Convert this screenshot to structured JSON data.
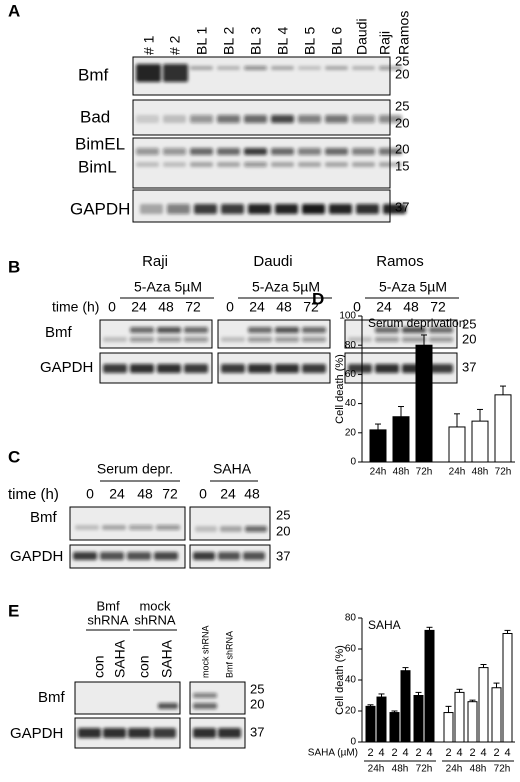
{
  "panels": {
    "A": {
      "label": "A",
      "lanes": [
        "# 1",
        "# 2",
        "BL 1",
        "BL 2",
        "BL 3",
        "BL 4",
        "BL 5",
        "BL 6",
        "Daudi",
        "Raji",
        "Ramos"
      ],
      "rows": [
        "Bmf",
        "Bad",
        "BimEL",
        "BimL",
        "GAPDH"
      ],
      "mw": [
        "25",
        "20",
        "25",
        "20",
        "20",
        "15",
        "37"
      ]
    },
    "B": {
      "label": "B",
      "cell_lines": [
        "Raji",
        "Daudi",
        "Ramos"
      ],
      "treatment": "5-Aza 5µM",
      "time_label": "time (h)",
      "times": [
        "0",
        "24",
        "48",
        "72"
      ],
      "rows": [
        "Bmf",
        "GAPDH"
      ],
      "mw": [
        "25",
        "20",
        "37"
      ]
    },
    "C": {
      "label": "C",
      "conditions": [
        "Serum depr.",
        "SAHA"
      ],
      "time_label": "time (h)",
      "times_serum": [
        "0",
        "24",
        "48",
        "72"
      ],
      "times_saha": [
        "0",
        "24",
        "48"
      ],
      "rows": [
        "Bmf",
        "GAPDH"
      ],
      "mw": [
        "25",
        "20",
        "37"
      ]
    },
    "D": {
      "label": "D"
    },
    "E": {
      "label": "E",
      "group_labels": [
        [
          "Bmf",
          "shRNA"
        ],
        [
          "mock",
          "shRNA"
        ]
      ],
      "lanes": [
        "con",
        "SAHA",
        "con",
        "SAHA"
      ],
      "side_lanes": [
        "mock shRNA",
        "Bmf shRNA"
      ],
      "rows": [
        "Bmf",
        "GAPDH"
      ],
      "mw": [
        "25",
        "20",
        "37"
      ]
    }
  },
  "chart_data": [
    {
      "type": "bar",
      "title": "Serum deprivation",
      "y_label": "Cell death (%)",
      "categories": [
        "24h",
        "48h",
        "72h",
        "24h",
        "48h",
        "72h"
      ],
      "values": [
        22,
        31,
        80,
        24,
        28,
        46
      ],
      "errors": [
        4,
        7,
        7,
        9,
        8,
        6
      ],
      "colors": [
        "#000000",
        "#000000",
        "#000000",
        "#ffffff",
        "#ffffff",
        "#ffffff"
      ],
      "ylim": [
        0,
        100
      ],
      "yticks": [
        0,
        20,
        40,
        60,
        80,
        100
      ]
    },
    {
      "type": "bar",
      "title": "SAHA",
      "y_label": "Cell death (%)",
      "x_label": "SAHA (µM)",
      "categories": [
        "2",
        "4",
        "2",
        "4",
        "2",
        "4",
        "2",
        "4",
        "2",
        "4",
        "2",
        "4"
      ],
      "groups": [
        "24h",
        "48h",
        "72h",
        "24h",
        "48h",
        "72h"
      ],
      "values": [
        23,
        29,
        19,
        46,
        30,
        72,
        19,
        32,
        26,
        48,
        35,
        70
      ],
      "errors": [
        1,
        2,
        1,
        2,
        2,
        2,
        4,
        2,
        1,
        2,
        3,
        2
      ],
      "colors": [
        "#000000",
        "#000000",
        "#000000",
        "#000000",
        "#000000",
        "#000000",
        "#ffffff",
        "#ffffff",
        "#ffffff",
        "#ffffff",
        "#ffffff",
        "#ffffff"
      ],
      "ylim": [
        0,
        80
      ],
      "yticks": [
        0,
        20,
        40,
        60,
        80
      ]
    }
  ]
}
